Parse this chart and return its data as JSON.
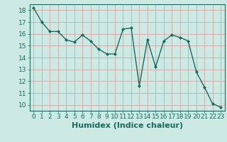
{
  "x": [
    0,
    1,
    2,
    3,
    4,
    5,
    6,
    7,
    8,
    9,
    10,
    11,
    12,
    13,
    14,
    15,
    16,
    17,
    18,
    19,
    20,
    21,
    22,
    23
  ],
  "y": [
    18.2,
    17.0,
    16.2,
    16.2,
    15.5,
    15.3,
    15.9,
    15.4,
    14.7,
    14.3,
    14.3,
    16.4,
    16.5,
    11.6,
    15.5,
    13.2,
    15.4,
    15.9,
    15.7,
    15.4,
    12.8,
    11.5,
    10.1,
    9.8
  ],
  "xlabel": "Humidex (Indice chaleur)",
  "ylim": [
    9.5,
    18.5
  ],
  "xlim": [
    -0.5,
    23.5
  ],
  "yticks": [
    10,
    11,
    12,
    13,
    14,
    15,
    16,
    17,
    18
  ],
  "xticks": [
    0,
    1,
    2,
    3,
    4,
    5,
    6,
    7,
    8,
    9,
    10,
    11,
    12,
    13,
    14,
    15,
    16,
    17,
    18,
    19,
    20,
    21,
    22,
    23
  ],
  "line_color": "#1a6b5e",
  "marker": "D",
  "marker_size": 2.0,
  "line_width": 1.0,
  "bg_color": "#cce9e4",
  "grid_color": "#b0c8c4",
  "grid_color_major": "#cc9999",
  "xlabel_fontsize": 8,
  "tick_fontsize": 6.5,
  "tick_color": "#1a6b5e"
}
